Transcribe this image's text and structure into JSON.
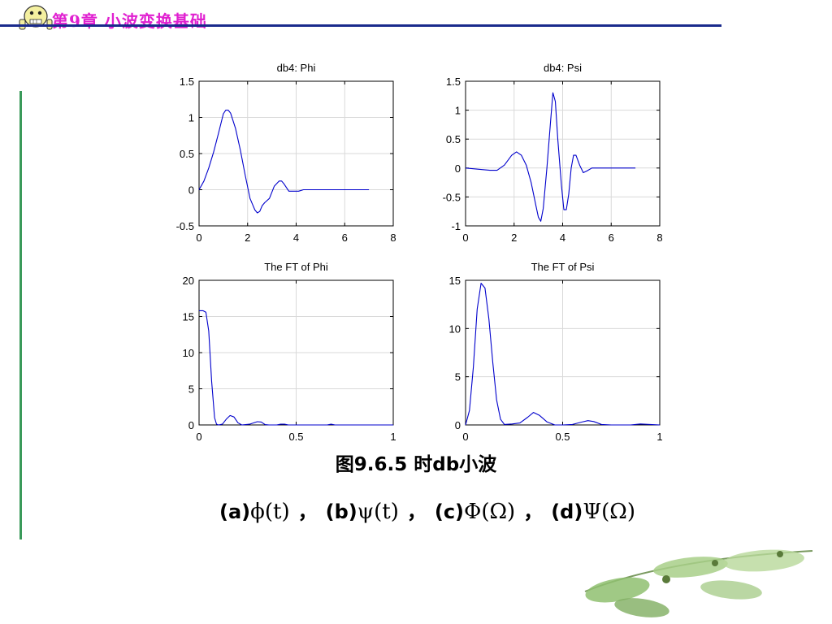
{
  "header": {
    "title": "第9章 小波变换基础"
  },
  "caption": "图9.6.5 时db小波",
  "equation": {
    "items": [
      {
        "label": "(a)",
        "symbol": "ϕ(t)"
      },
      {
        "label": "(b)",
        "symbol": "ψ(t)"
      },
      {
        "label": "(c)",
        "symbol": "Φ(Ω)"
      },
      {
        "label": "(d)",
        "symbol": "Ψ(Ω)"
      }
    ],
    "separator": "，"
  },
  "colors": {
    "title": "#e020d0",
    "rule": "#1a2a8c",
    "sidebar": "#3a9a5a",
    "line": "#0000cc",
    "grid": "#d9d9d9"
  },
  "chart_data": [
    {
      "type": "line",
      "title": "db4:  Phi",
      "xlim": [
        0,
        8
      ],
      "ylim": [
        -0.5,
        1.5
      ],
      "xticks": [
        0,
        2,
        4,
        6,
        8
      ],
      "yticks": [
        -0.5,
        0,
        0.5,
        1,
        1.5
      ],
      "xticklabels": [
        "0",
        "2",
        "4",
        "6",
        "8"
      ],
      "yticklabels": [
        "-0.5",
        "0",
        "0.5",
        "1",
        "1.5"
      ],
      "grid": true,
      "x": [
        0,
        0.2,
        0.4,
        0.6,
        0.8,
        1.0,
        1.1,
        1.2,
        1.3,
        1.5,
        1.7,
        1.9,
        2.1,
        2.3,
        2.4,
        2.5,
        2.6,
        2.7,
        2.9,
        3.1,
        3.3,
        3.4,
        3.5,
        3.7,
        3.9,
        4.1,
        4.3,
        4.5,
        4.7,
        5.0,
        5.5,
        6.0,
        7.0
      ],
      "y": [
        0,
        0.12,
        0.3,
        0.52,
        0.78,
        1.05,
        1.1,
        1.1,
        1.06,
        0.85,
        0.55,
        0.2,
        -0.12,
        -0.28,
        -0.32,
        -0.3,
        -0.22,
        -0.18,
        -0.12,
        0.05,
        0.12,
        0.12,
        0.08,
        -0.02,
        -0.02,
        -0.02,
        0,
        0,
        0,
        0,
        0,
        0,
        0
      ]
    },
    {
      "type": "line",
      "title": "db4: Psi",
      "xlim": [
        0,
        8
      ],
      "ylim": [
        -1,
        1.5
      ],
      "xticks": [
        0,
        2,
        4,
        6,
        8
      ],
      "yticks": [
        -1,
        -0.5,
        0,
        0.5,
        1,
        1.5
      ],
      "xticklabels": [
        "0",
        "2",
        "4",
        "6",
        "8"
      ],
      "yticklabels": [
        "-1",
        "-0.5",
        "0",
        "0.5",
        "1",
        "1.5"
      ],
      "grid": true,
      "x": [
        0,
        0.5,
        1.0,
        1.3,
        1.6,
        1.9,
        2.1,
        2.3,
        2.5,
        2.7,
        2.9,
        3.0,
        3.1,
        3.2,
        3.35,
        3.5,
        3.6,
        3.7,
        3.8,
        3.95,
        4.05,
        4.15,
        4.25,
        4.35,
        4.45,
        4.55,
        4.7,
        4.85,
        5.0,
        5.2,
        5.5,
        6.0,
        7.0
      ],
      "y": [
        0,
        -0.02,
        -0.04,
        -0.04,
        0.05,
        0.22,
        0.28,
        0.22,
        0.05,
        -0.25,
        -0.65,
        -0.85,
        -0.92,
        -0.7,
        0,
        0.8,
        1.3,
        1.15,
        0.5,
        -0.3,
        -0.72,
        -0.72,
        -0.45,
        0,
        0.22,
        0.22,
        0.05,
        -0.08,
        -0.05,
        0,
        0,
        0,
        0
      ]
    },
    {
      "type": "line",
      "title": "The FT of Phi",
      "xlim": [
        0,
        1
      ],
      "ylim": [
        0,
        20
      ],
      "xticks": [
        0,
        0.5,
        1
      ],
      "yticks": [
        0,
        5,
        10,
        15,
        20
      ],
      "xticklabels": [
        "0",
        "0.5",
        "1"
      ],
      "yticklabels": [
        "0",
        "5",
        "10",
        "15",
        "20"
      ],
      "grid": true,
      "x": [
        0,
        0.02,
        0.035,
        0.05,
        0.065,
        0.08,
        0.09,
        0.1,
        0.12,
        0.14,
        0.16,
        0.18,
        0.2,
        0.22,
        0.26,
        0.3,
        0.32,
        0.34,
        0.36,
        0.4,
        0.42,
        0.44,
        0.46,
        0.5,
        0.66,
        0.68,
        0.7,
        0.8,
        1.0
      ],
      "y": [
        15.8,
        15.8,
        15.6,
        13,
        6,
        1,
        0.1,
        0,
        0.1,
        0.8,
        1.3,
        1.1,
        0.3,
        0,
        0.1,
        0.45,
        0.4,
        0.05,
        0,
        0,
        0.1,
        0.1,
        0,
        0,
        0,
        0.1,
        0,
        0,
        0
      ]
    },
    {
      "type": "line",
      "title": "The FT of Psi",
      "xlim": [
        0,
        1
      ],
      "ylim": [
        0,
        15
      ],
      "xticks": [
        0,
        0.5,
        1
      ],
      "yticks": [
        0,
        5,
        10,
        15
      ],
      "xticklabels": [
        "0",
        "0.5",
        "1"
      ],
      "yticklabels": [
        "0",
        "5",
        "10",
        "15"
      ],
      "grid": true,
      "x": [
        0,
        0.02,
        0.04,
        0.06,
        0.08,
        0.1,
        0.12,
        0.14,
        0.16,
        0.18,
        0.2,
        0.24,
        0.28,
        0.32,
        0.35,
        0.38,
        0.42,
        0.46,
        0.5,
        0.55,
        0.6,
        0.63,
        0.66,
        0.7,
        0.75,
        0.85,
        0.9,
        1.0
      ],
      "y": [
        0,
        1.5,
        6,
        12,
        14.7,
        14.2,
        11,
        6.5,
        2.6,
        0.6,
        0.05,
        0.1,
        0.2,
        0.8,
        1.3,
        1.0,
        0.3,
        0,
        0,
        0.05,
        0.3,
        0.45,
        0.35,
        0.05,
        0,
        0,
        0.1,
        0
      ]
    }
  ]
}
